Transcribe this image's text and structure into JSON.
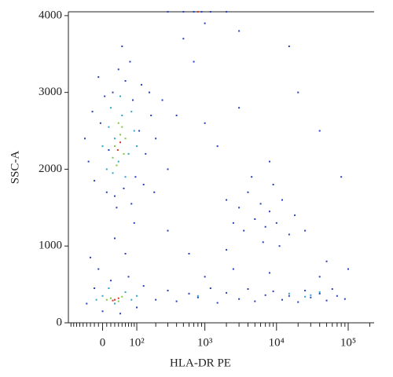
{
  "chart_data": {
    "type": "scatter",
    "x_label": "HLA-DR PE",
    "y_label": "SSC-A",
    "xscale": "biexponential",
    "xlim": [
      -100,
      230000
    ],
    "ylim": [
      0,
      4050
    ],
    "xticks": [
      0,
      {
        "value": 100,
        "label": "10²"
      },
      {
        "value": 1000,
        "label": "10³"
      },
      {
        "value": 10000,
        "label": "10⁴"
      },
      {
        "value": 100000,
        "label": "10⁵"
      }
    ],
    "xminorticks": [
      -90,
      -80,
      -70,
      -60,
      -50,
      -40,
      -30,
      -20,
      -10,
      10,
      20,
      30,
      40,
      50,
      60,
      70,
      80,
      90,
      200,
      300,
      400,
      500,
      600,
      700,
      800,
      900,
      2000,
      3000,
      4000,
      5000,
      6000,
      7000,
      8000,
      9000,
      20000,
      30000,
      40000,
      50000,
      60000,
      70000,
      80000,
      90000,
      200000
    ],
    "yticks": [
      0,
      1000,
      2000,
      3000,
      4000
    ],
    "series": [
      {
        "color": "#2a3fc0",
        "x": [
          -35,
          -20,
          -5,
          10,
          25,
          40,
          60,
          85,
          110,
          140,
          170,
          -45,
          5,
          30,
          55,
          75,
          95,
          120,
          200,
          250,
          -25,
          15,
          130,
          160,
          50,
          35,
          80,
          300,
          -10,
          190,
          -40,
          -20,
          0,
          20,
          45,
          70,
          100,
          130,
          -10,
          60,
          30,
          90,
          -30,
          200,
          300,
          400,
          600,
          800,
          1200,
          1500,
          2000,
          3000,
          4000,
          5000,
          7000,
          9000,
          12000,
          15000,
          20000,
          25000,
          30000,
          40000,
          50000,
          60000,
          70000,
          90000,
          1000,
          2500,
          8000,
          40000,
          2000,
          3000,
          3500,
          4000,
          5000,
          6000,
          7000,
          8000,
          9000,
          10000,
          12000,
          15000,
          18000,
          4500,
          2500,
          6500,
          11000,
          25000,
          500,
          700,
          1000,
          1500,
          3000,
          8000,
          20000,
          40000,
          80000,
          600,
          300,
          2000,
          50000,
          100000,
          1000,
          3000,
          15000,
          400,
          300,
          500,
          700,
          900,
          1200,
          2000
        ],
        "y": [
          2100,
          1850,
          2600,
          1700,
          3000,
          3300,
          3150,
          2900,
          2500,
          2200,
          2700,
          2400,
          2950,
          1650,
          1750,
          3400,
          1900,
          3100,
          2400,
          2900,
          2750,
          2250,
          1800,
          3000,
          3600,
          1500,
          1550,
          2000,
          3200,
          1700,
          250,
          450,
          150,
          550,
          120,
          600,
          200,
          480,
          700,
          900,
          1100,
          1300,
          850,
          300,
          420,
          280,
          380,
          330,
          450,
          260,
          390,
          310,
          440,
          280,
          360,
          410,
          300,
          350,
          270,
          420,
          330,
          380,
          290,
          440,
          350,
          310,
          600,
          700,
          650,
          600,
          1600,
          1500,
          1200,
          1700,
          1350,
          1550,
          1250,
          1450,
          1800,
          1300,
          1600,
          1150,
          1400,
          1900,
          1300,
          1050,
          1000,
          1200,
          3700,
          3400,
          2600,
          2300,
          2800,
          2100,
          3000,
          2500,
          1900,
          900,
          1200,
          950,
          800,
          700,
          3900,
          3800,
          3600,
          2700,
          4050,
          4050,
          4050,
          4050,
          4050,
          4050
        ]
      },
      {
        "color": "#2aa6c8",
        "x": [
          10,
          30,
          50,
          70,
          20,
          60,
          90,
          40,
          0,
          80,
          45,
          25,
          100,
          15,
          0,
          30,
          60,
          80,
          15,
          -15,
          100,
          15000,
          25000,
          40000,
          30000,
          800,
          800
        ],
        "y": [
          2000,
          2400,
          2700,
          2200,
          2800,
          1900,
          2500,
          2100,
          2300,
          2750,
          2950,
          1950,
          2300,
          2550,
          350,
          250,
          400,
          300,
          450,
          300,
          350,
          380,
          340,
          400,
          360,
          350,
          4050
        ]
      },
      {
        "color": "#7cc83a",
        "x": [
          30,
          45,
          55,
          40,
          25,
          60,
          35,
          50,
          20,
          40,
          50,
          10
        ],
        "y": [
          2300,
          2450,
          2200,
          2600,
          2150,
          2400,
          2050,
          2550,
          320,
          280,
          340,
          300
        ]
      },
      {
        "color": "#e0301e",
        "x": [
          45,
          38,
          30,
          40,
          25,
          800
        ],
        "y": [
          2350,
          2250,
          300,
          320,
          290,
          4050
        ]
      }
    ]
  }
}
